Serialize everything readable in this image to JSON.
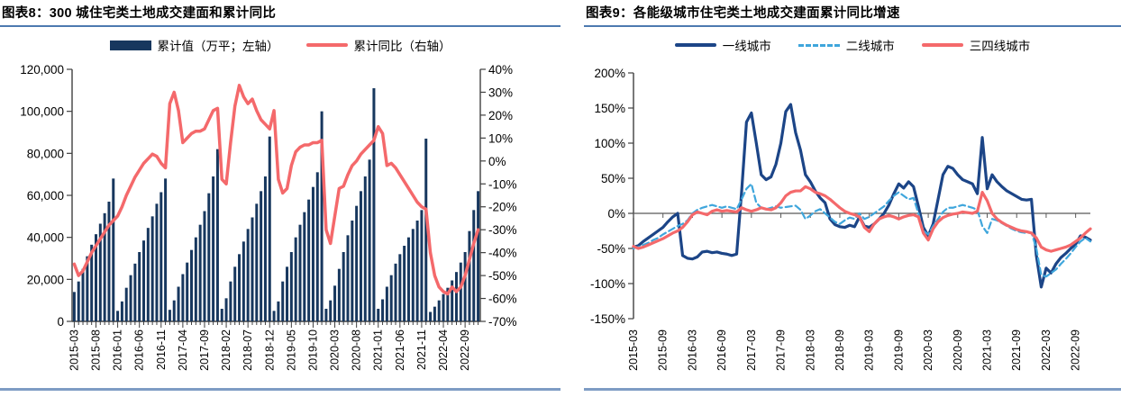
{
  "colors": {
    "navy": "#17375E",
    "line_navy": "#1C4587",
    "salmon": "#F4696B",
    "sky": "#3FA6DC",
    "rule_top": "#4D7AB0",
    "rule_bottom": "#7E9CC4",
    "axis": "#404040"
  },
  "panels": [
    {
      "title": "图表8：300 城住宅类土地成交建面和累计同比",
      "legend": [
        {
          "type": "bar",
          "color": "navy",
          "label": "累计值（万平；左轴）"
        },
        {
          "type": "line",
          "color": "salmon",
          "label": "累计同比（右轴）"
        }
      ],
      "chart_data": {
        "type": "bar",
        "title": "300城住宅类土地成交建面和累计同比",
        "x": [
          "2015-03",
          "2015-04",
          "2015-05",
          "2015-06",
          "2015-07",
          "2015-08",
          "2015-09",
          "2015-10",
          "2015-11",
          "2015-12",
          "2016-01",
          "2016-02",
          "2016-03",
          "2016-04",
          "2016-05",
          "2016-06",
          "2016-07",
          "2016-08",
          "2016-09",
          "2016-10",
          "2016-11",
          "2016-12",
          "2017-01",
          "2017-02",
          "2017-03",
          "2017-04",
          "2017-05",
          "2017-06",
          "2017-07",
          "2017-08",
          "2017-09",
          "2017-10",
          "2017-11",
          "2017-12",
          "2018-01",
          "2018-02",
          "2018-03",
          "2018-04",
          "2018-05",
          "2018-06",
          "2018-07",
          "2018-08",
          "2018-09",
          "2018-10",
          "2018-11",
          "2018-12",
          "2019-01",
          "2019-02",
          "2019-03",
          "2019-04",
          "2019-05",
          "2019-06",
          "2019-07",
          "2019-08",
          "2019-09",
          "2019-10",
          "2019-11",
          "2019-12",
          "2020-01",
          "2020-02",
          "2020-03",
          "2020-04",
          "2020-05",
          "2020-06",
          "2020-07",
          "2020-08",
          "2020-09",
          "2020-10",
          "2020-11",
          "2020-12",
          "2021-01",
          "2021-02",
          "2021-03",
          "2021-04",
          "2021-05",
          "2021-06",
          "2021-07",
          "2021-08",
          "2021-09",
          "2021-10",
          "2021-11",
          "2021-12",
          "2022-01",
          "2022-02",
          "2022-03",
          "2022-04",
          "2022-05",
          "2022-06",
          "2022-07",
          "2022-08",
          "2022-09",
          "2022-10",
          "2022-11",
          "2022-12"
        ],
        "x_label_every": 5,
        "bar_series": {
          "name": "累计值（万平；左轴）",
          "values": [
            14000,
            19000,
            25000,
            31000,
            36500,
            41500,
            46500,
            51500,
            57000,
            68000,
            5000,
            9500,
            16000,
            22000,
            27500,
            33000,
            38500,
            44500,
            50000,
            56000,
            61500,
            68000,
            5500,
            10000,
            16500,
            22500,
            28000,
            34000,
            40000,
            46000,
            52500,
            61000,
            69000,
            82000,
            6000,
            11000,
            19000,
            26000,
            32000,
            38000,
            44000,
            49500,
            56000,
            62000,
            69000,
            88000,
            5000,
            9500,
            19000,
            26000,
            33000,
            40000,
            46000,
            52000,
            58000,
            64000,
            71000,
            100000,
            6000,
            10000,
            17000,
            25000,
            33000,
            41000,
            48000,
            55000,
            62000,
            69000,
            77000,
            111000,
            6000,
            10500,
            16500,
            22000,
            27500,
            32000,
            36000,
            40000,
            44000,
            48000,
            53000,
            87000,
            4500,
            7000,
            10000,
            13000,
            16000,
            19500,
            23500,
            28000,
            33000,
            43000,
            53000,
            62000
          ]
        },
        "line_series": {
          "name": "累计同比（右轴）",
          "values": [
            -45,
            -50,
            -48,
            -44,
            -40,
            -37,
            -34,
            -31,
            -28,
            -26,
            -24,
            -20,
            -15,
            -11,
            -7,
            -4,
            -1,
            1,
            3,
            2,
            -1,
            -3,
            25,
            30,
            22,
            8,
            10,
            12,
            13,
            13,
            14,
            18,
            22,
            23,
            -8,
            -10,
            8,
            24,
            33,
            28,
            25,
            27,
            22,
            18,
            16,
            14,
            22,
            -8,
            -14,
            -12,
            -2,
            4,
            6,
            7,
            7,
            8,
            8,
            9,
            -30,
            -36,
            -24,
            -12,
            -11,
            -6,
            -2,
            0,
            3,
            5,
            7,
            9,
            15,
            12,
            -2,
            -1,
            -3,
            -6,
            -9,
            -12,
            -15,
            -18,
            -20,
            -21,
            -40,
            -50,
            -55,
            -57,
            -58,
            -55,
            -57,
            -55,
            -50,
            -43,
            -36,
            -30
          ]
        },
        "left_axis": {
          "min": 0,
          "max": 120000,
          "step": 20000,
          "ylabel": "万平"
        },
        "right_axis": {
          "min": -70,
          "max": 40,
          "step": 10,
          "format": "percent"
        }
      }
    },
    {
      "title": "图表9：各能级城市住宅类土地成交建面累计同比增速",
      "legend": [
        {
          "type": "line",
          "color": "line_navy",
          "label": "一线城市"
        },
        {
          "type": "dashed",
          "color": "sky",
          "label": "二线城市"
        },
        {
          "type": "line",
          "color": "salmon",
          "label": "三四线城市"
        }
      ],
      "chart_data": {
        "type": "line",
        "title": "各能级城市住宅类土地成交建面累计同比增速",
        "x": [
          "2015-03",
          "2015-04",
          "2015-05",
          "2015-06",
          "2015-07",
          "2015-08",
          "2015-09",
          "2015-10",
          "2015-11",
          "2015-12",
          "2016-01",
          "2016-02",
          "2016-03",
          "2016-04",
          "2016-05",
          "2016-06",
          "2016-07",
          "2016-08",
          "2016-09",
          "2016-10",
          "2016-11",
          "2016-12",
          "2017-01",
          "2017-02",
          "2017-03",
          "2017-04",
          "2017-05",
          "2017-06",
          "2017-07",
          "2017-08",
          "2017-09",
          "2017-10",
          "2017-11",
          "2017-12",
          "2018-01",
          "2018-02",
          "2018-03",
          "2018-04",
          "2018-05",
          "2018-06",
          "2018-07",
          "2018-08",
          "2018-09",
          "2018-10",
          "2018-11",
          "2018-12",
          "2019-01",
          "2019-02",
          "2019-03",
          "2019-04",
          "2019-05",
          "2019-06",
          "2019-07",
          "2019-08",
          "2019-09",
          "2019-10",
          "2019-11",
          "2019-12",
          "2020-01",
          "2020-02",
          "2020-03",
          "2020-04",
          "2020-05",
          "2020-06",
          "2020-07",
          "2020-08",
          "2020-09",
          "2020-10",
          "2020-11",
          "2020-12",
          "2021-01",
          "2021-02",
          "2021-03",
          "2021-04",
          "2021-05",
          "2021-06",
          "2021-07",
          "2021-08",
          "2021-09",
          "2021-10",
          "2021-11",
          "2021-12",
          "2022-01",
          "2022-02",
          "2022-03",
          "2022-04",
          "2022-05",
          "2022-06",
          "2022-07",
          "2022-08",
          "2022-09",
          "2022-10",
          "2022-11",
          "2022-12"
        ],
        "x_label_every": 6,
        "series": [
          {
            "name": "一线城市",
            "style": "solid",
            "color": "line_navy",
            "values": [
              -48,
              -46,
              -40,
              -35,
              -30,
              -25,
              -20,
              -12,
              -5,
              0,
              -60,
              -64,
              -65,
              -62,
              -55,
              -54,
              -56,
              -55,
              -57,
              -58,
              -60,
              -58,
              30,
              130,
              143,
              100,
              55,
              48,
              52,
              70,
              100,
              145,
              155,
              115,
              90,
              55,
              45,
              32,
              22,
              15,
              -8,
              -16,
              -19,
              -20,
              -17,
              -19,
              -5,
              -18,
              -20,
              -15,
              -8,
              0,
              12,
              28,
              42,
              36,
              45,
              38,
              10,
              -20,
              -32,
              -15,
              20,
              55,
              67,
              64,
              55,
              48,
              45,
              42,
              28,
              108,
              35,
              55,
              45,
              38,
              32,
              28,
              24,
              20,
              19,
              20,
              -60,
              -105,
              -78,
              -85,
              -72,
              -63,
              -57,
              -50,
              -44,
              -32,
              -34,
              -38
            ]
          },
          {
            "name": "二线城市",
            "style": "dashed",
            "color": "sky",
            "values": [
              -50,
              -48,
              -45,
              -42,
              -38,
              -35,
              -30,
              -26,
              -22,
              -18,
              -15,
              -10,
              0,
              5,
              8,
              10,
              12,
              10,
              8,
              10,
              8,
              6,
              20,
              35,
              42,
              15,
              8,
              6,
              8,
              10,
              8,
              9,
              10,
              11,
              5,
              -8,
              -3,
              3,
              6,
              0,
              -6,
              -12,
              -15,
              -10,
              -6,
              -8,
              0,
              -8,
              -5,
              0,
              5,
              10,
              18,
              25,
              30,
              25,
              20,
              22,
              0,
              -25,
              -30,
              -18,
              -8,
              2,
              8,
              8,
              10,
              12,
              10,
              8,
              5,
              -18,
              -28,
              -8,
              -10,
              -14,
              -18,
              -22,
              -25,
              -27,
              -28,
              -27,
              -50,
              -88,
              -90,
              -85,
              -80,
              -72,
              -65,
              -57,
              -48,
              -40,
              -35,
              -40
            ]
          },
          {
            "name": "三四线城市",
            "style": "solid",
            "color": "salmon",
            "values": [
              -47,
              -50,
              -48,
              -45,
              -42,
              -39,
              -36,
              -32,
              -28,
              -25,
              -20,
              -12,
              -2,
              2,
              0,
              -2,
              3,
              5,
              3,
              4,
              3,
              2,
              8,
              5,
              3,
              5,
              8,
              6,
              5,
              8,
              15,
              25,
              30,
              32,
              32,
              38,
              35,
              30,
              28,
              25,
              20,
              14,
              8,
              3,
              0,
              -2,
              -5,
              -20,
              -26,
              -15,
              -8,
              -5,
              -3,
              -5,
              -8,
              -5,
              -3,
              -2,
              -5,
              -28,
              -38,
              -22,
              -12,
              -6,
              -3,
              -1,
              0,
              2,
              1,
              0,
              3,
              30,
              18,
              0,
              -8,
              -13,
              -17,
              -20,
              -23,
              -25,
              -26,
              -28,
              -35,
              -48,
              -52,
              -54,
              -52,
              -50,
              -48,
              -45,
              -40,
              -35,
              -28,
              -22
            ]
          }
        ],
        "y_axis": {
          "min": -150,
          "max": 200,
          "step": 50,
          "format": "percent"
        }
      }
    }
  ]
}
